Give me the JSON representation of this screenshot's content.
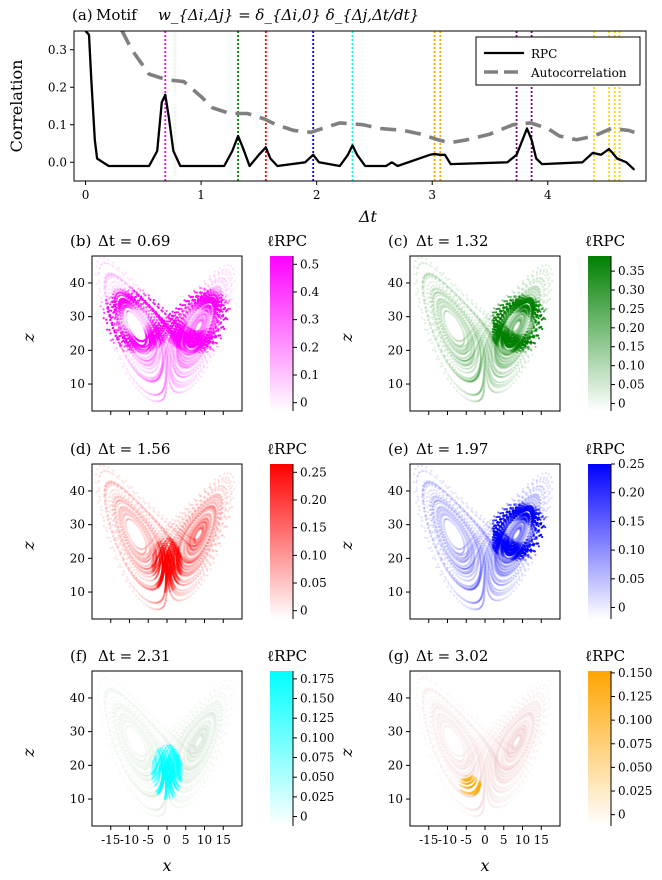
{
  "chart_data": [
    {
      "type": "line",
      "panel": "(a)",
      "title": "Motif",
      "title_formula": "w_{Δi,Δj} = δ_{Δi,0} δ_{Δj,Δt/dt}",
      "xlabel": "Δt",
      "ylabel": "Correlation",
      "xlim": [
        -0.1,
        4.85
      ],
      "ylim": [
        -0.05,
        0.35
      ],
      "xticks": [
        "0",
        "1",
        "2",
        "3",
        "4"
      ],
      "xtick_values": [
        0,
        1,
        2,
        3,
        4
      ],
      "yticks": [
        "0.0",
        "0.1",
        "0.2",
        "0.3"
      ],
      "ytick_values": [
        0,
        0.1,
        0.2,
        0.3
      ],
      "legend_position": "top-right",
      "series": [
        {
          "name": "RPC",
          "color": "#000000",
          "style": "solid",
          "x": [
            0.0,
            0.03,
            0.05,
            0.08,
            0.1,
            0.15,
            0.2,
            0.4,
            0.55,
            0.62,
            0.66,
            0.69,
            0.72,
            0.76,
            0.82,
            0.9,
            1.2,
            1.27,
            1.32,
            1.36,
            1.42,
            1.5,
            1.56,
            1.6,
            1.66,
            1.9,
            1.97,
            2.02,
            2.2,
            2.27,
            2.31,
            2.35,
            2.42,
            2.6,
            2.65,
            2.7,
            2.98,
            3.02,
            3.07,
            3.11,
            3.16,
            3.65,
            3.73,
            3.82,
            3.86,
            3.9,
            3.95,
            4.3,
            4.39,
            4.46,
            4.53,
            4.56,
            4.6,
            4.68,
            4.75
          ],
          "y": [
            0.35,
            0.34,
            0.22,
            0.06,
            0.01,
            0.0,
            -0.01,
            -0.01,
            -0.01,
            0.03,
            0.16,
            0.18,
            0.12,
            0.03,
            -0.01,
            -0.01,
            -0.01,
            0.03,
            0.07,
            0.04,
            -0.01,
            0.02,
            0.04,
            0.01,
            -0.01,
            0.0,
            0.02,
            0.0,
            -0.01,
            0.02,
            0.045,
            0.02,
            -0.01,
            -0.01,
            0.0,
            -0.01,
            0.02,
            0.022,
            0.02,
            0.02,
            -0.005,
            0.0,
            0.02,
            0.09,
            0.06,
            0.01,
            -0.005,
            0.0,
            0.025,
            0.02,
            0.035,
            0.025,
            0.01,
            0.0,
            -0.02
          ]
        },
        {
          "name": "Autocorrelation",
          "color": "#808080",
          "style": "dashed",
          "x": [
            0.0,
            0.3,
            0.4,
            0.55,
            0.7,
            0.85,
            1.0,
            1.1,
            1.25,
            1.4,
            1.55,
            1.65,
            1.8,
            1.95,
            2.05,
            2.2,
            2.4,
            2.55,
            2.75,
            2.9,
            3.05,
            3.15,
            3.3,
            3.5,
            3.7,
            3.85,
            4.0,
            4.1,
            4.25,
            4.4,
            4.55,
            4.7,
            4.75
          ],
          "y": [
            0.6,
            0.36,
            0.3,
            0.235,
            0.22,
            0.215,
            0.175,
            0.145,
            0.13,
            0.13,
            0.115,
            0.1,
            0.085,
            0.08,
            0.09,
            0.105,
            0.1,
            0.09,
            0.085,
            0.075,
            0.06,
            0.052,
            0.06,
            0.075,
            0.1,
            0.105,
            0.09,
            0.07,
            0.06,
            0.07,
            0.09,
            0.085,
            0.08
          ]
        }
      ],
      "markers": [
        {
          "x": 0.69,
          "color": "#ff00ff"
        },
        {
          "x": 1.32,
          "color": "#008000"
        },
        {
          "x": 1.56,
          "color": "#ff0000"
        },
        {
          "x": 1.97,
          "color": "#0000ff"
        },
        {
          "x": 2.31,
          "color": "#00ffff"
        },
        {
          "x": 3.02,
          "color": "#ffa500"
        },
        {
          "x": 3.07,
          "color": "#ffa500"
        },
        {
          "x": 3.73,
          "color": "#800080"
        },
        {
          "x": 3.86,
          "color": "#800080"
        },
        {
          "x": 4.4,
          "color": "#ffd700"
        },
        {
          "x": 4.53,
          "color": "#ffd700"
        },
        {
          "x": 4.58,
          "color": "#ffd700"
        },
        {
          "x": 4.62,
          "color": "#ffd700"
        }
      ]
    },
    {
      "type": "scatter",
      "panel": "(b)",
      "title": "Δt = 0.69",
      "colorbar_label": "ℓRPC",
      "color": "#ff00ff",
      "colorbar_ticks": [
        "0",
        "0.1",
        "0.2",
        "0.3",
        "0.4",
        "0.5"
      ],
      "colorbar_values": [
        0,
        0.1,
        0.2,
        0.3,
        0.4,
        0.5
      ],
      "colorbar_range": [
        -0.03,
        0.53
      ],
      "ylabel": "z",
      "xlabel": "",
      "xlim": [
        -20,
        20
      ],
      "ylim": [
        2,
        48
      ],
      "yticks": [
        "10",
        "20",
        "30",
        "40"
      ],
      "highlight": "both-wings"
    },
    {
      "type": "scatter",
      "panel": "(c)",
      "title": "Δt = 1.32",
      "colorbar_label": "ℓRPC",
      "color": "#008000",
      "colorbar_ticks": [
        "0",
        "0.05",
        "0.10",
        "0.15",
        "0.20",
        "0.25",
        "0.30",
        "0.35"
      ],
      "colorbar_values": [
        0,
        0.05,
        0.1,
        0.15,
        0.2,
        0.25,
        0.3,
        0.35
      ],
      "colorbar_range": [
        -0.02,
        0.39
      ],
      "ylabel": "z",
      "xlabel": "",
      "xlim": [
        -20,
        20
      ],
      "ylim": [
        2,
        48
      ],
      "yticks": [
        "10",
        "20",
        "30",
        "40"
      ],
      "highlight": "right-wing"
    },
    {
      "type": "scatter",
      "panel": "(d)",
      "title": "Δt = 1.56",
      "colorbar_label": "ℓRPC",
      "color": "#ff0000",
      "colorbar_ticks": [
        "0",
        "0.05",
        "0.10",
        "0.15",
        "0.20",
        "0.25"
      ],
      "colorbar_values": [
        0,
        0.05,
        0.1,
        0.15,
        0.2,
        0.25
      ],
      "colorbar_range": [
        -0.015,
        0.265
      ],
      "ylabel": "z",
      "xlabel": "",
      "xlim": [
        -20,
        20
      ],
      "ylim": [
        2,
        48
      ],
      "yticks": [
        "10",
        "20",
        "30",
        "40"
      ],
      "highlight": "center"
    },
    {
      "type": "scatter",
      "panel": "(e)",
      "title": "Δt = 1.97",
      "colorbar_label": "ℓRPC",
      "color": "#0000ff",
      "colorbar_ticks": [
        "0",
        "0.05",
        "0.10",
        "0.15",
        "0.20",
        "0.25"
      ],
      "colorbar_values": [
        0,
        0.05,
        0.1,
        0.15,
        0.2,
        0.25
      ],
      "colorbar_range": [
        -0.02,
        0.25
      ],
      "ylabel": "z",
      "xlabel": "",
      "xlim": [
        -20,
        20
      ],
      "ylim": [
        2,
        48
      ],
      "yticks": [
        "10",
        "20",
        "30",
        "40"
      ],
      "highlight": "right-wing"
    },
    {
      "type": "scatter",
      "panel": "(f)",
      "title": "Δt = 2.31",
      "colorbar_label": "ℓRPC",
      "color": "#00ffff",
      "colorbar_ticks": [
        "0",
        "0.025",
        "0.050",
        "0.075",
        "0.100",
        "0.125",
        "0.150",
        "0.175"
      ],
      "colorbar_values": [
        0,
        0.025,
        0.05,
        0.075,
        0.1,
        0.125,
        0.15,
        0.175
      ],
      "colorbar_range": [
        -0.012,
        0.185
      ],
      "ylabel": "z",
      "xlabel": "x",
      "xlim": [
        -20,
        20
      ],
      "ylim": [
        2,
        48
      ],
      "xticks": [
        "-15",
        "-10",
        "-5",
        "0",
        "5",
        "10",
        "15"
      ],
      "yticks": [
        "10",
        "20",
        "30",
        "40"
      ],
      "highlight": "center"
    },
    {
      "type": "scatter",
      "panel": "(g)",
      "title": "Δt = 3.02",
      "colorbar_label": "ℓRPC",
      "color": "#ffa500",
      "colorbar_ticks": [
        "0",
        "0.025",
        "0.050",
        "0.075",
        "0.100",
        "0.125",
        "0.150"
      ],
      "colorbar_values": [
        0,
        0.025,
        0.05,
        0.075,
        0.1,
        0.125,
        0.15
      ],
      "colorbar_range": [
        -0.012,
        0.152
      ],
      "ylabel": "z",
      "xlabel": "x",
      "xlim": [
        -20,
        20
      ],
      "ylim": [
        2,
        48
      ],
      "xticks": [
        "-15",
        "-10",
        "-5",
        "0",
        "5",
        "10",
        "15"
      ],
      "yticks": [
        "10",
        "20",
        "30",
        "40"
      ],
      "highlight": "left-lower"
    }
  ]
}
